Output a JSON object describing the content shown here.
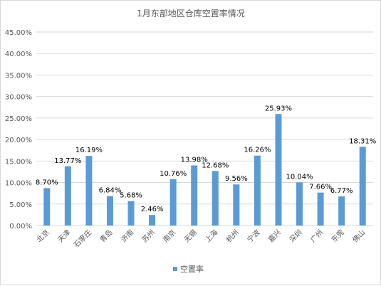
{
  "chart_data": {
    "type": "bar",
    "title": "1月东部地区仓库空置率情况",
    "categories": [
      "北京",
      "天津",
      "石家庄",
      "青岛",
      "济南",
      "苏州",
      "南京",
      "无锡",
      "上海",
      "杭州",
      "宁波",
      "嘉兴",
      "深圳",
      "广州",
      "东莞",
      "佛山"
    ],
    "series": [
      {
        "name": "空置率",
        "values": [
          8.7,
          13.77,
          16.19,
          6.84,
          5.68,
          2.46,
          10.76,
          13.98,
          12.68,
          9.56,
          16.26,
          25.93,
          10.04,
          7.66,
          6.77,
          18.31
        ],
        "labels": [
          "8.70%",
          "13.77%",
          "16.19%",
          "6.84%",
          "5.68%",
          "2.46%",
          "10.76%",
          "13.98%",
          "12.68%",
          "9.56%",
          "16.26%",
          "25.93%",
          "10.04%",
          "7.66%",
          "6.77%",
          "18.31%"
        ]
      }
    ],
    "ylim": [
      0,
      45
    ],
    "yticks": [
      "0.00%",
      "5.00%",
      "10.00%",
      "15.00%",
      "20.00%",
      "25.00%",
      "30.00%",
      "35.00%",
      "40.00%",
      "45.00%"
    ],
    "grid": true,
    "legend_position": "bottom",
    "colors": {
      "bar": "#5b9bd5",
      "grid": "#d9d9d9",
      "text": "#595959"
    }
  }
}
